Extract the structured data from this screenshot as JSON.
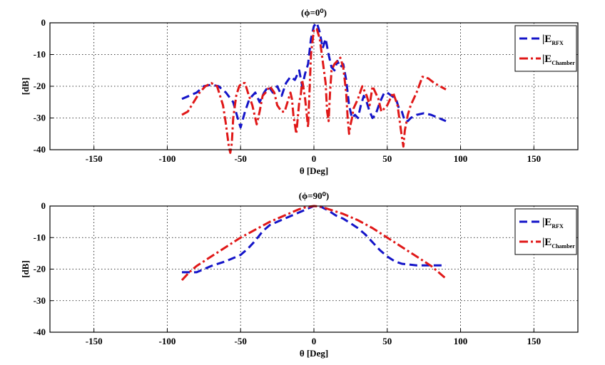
{
  "chart_data": [
    {
      "type": "line",
      "title": "(ϕ=0⁰)",
      "xlabel": "θ [Deg]",
      "ylabel": "[dB]",
      "xlim": [
        -180,
        180
      ],
      "ylim": [
        -40,
        0
      ],
      "xticks": [
        -150,
        -100,
        -50,
        0,
        50,
        100,
        150
      ],
      "yticks": [
        0,
        -10,
        -20,
        -30,
        -40
      ],
      "grid": true,
      "legend_position": "top-right",
      "legend": [
        {
          "text": "|E",
          "sub": "RFX"
        },
        {
          "text": "|E",
          "sub": "Chamber"
        }
      ],
      "series": [
        {
          "name": "|E RFX",
          "color": "#1414c8",
          "style": "dashed",
          "x": [
            -90,
            -80,
            -75,
            -70,
            -65,
            -60,
            -55,
            -52,
            -50,
            -47,
            -44,
            -40,
            -37,
            -34,
            -31,
            -28,
            -25,
            -22,
            -19,
            -16,
            -13,
            -10,
            -8,
            -6,
            -4,
            -2,
            0,
            2,
            4,
            6,
            8,
            10,
            12,
            14,
            16,
            18,
            20,
            22,
            24,
            26,
            28,
            30,
            32,
            34,
            36,
            38,
            40,
            42,
            45,
            48,
            50,
            53,
            56,
            58,
            60,
            62,
            64,
            66,
            70,
            75,
            80,
            85,
            90
          ],
          "y": [
            -24,
            -22,
            -20,
            -19.5,
            -20,
            -22,
            -25,
            -30,
            -33,
            -28,
            -24,
            -22,
            -25,
            -22,
            -20,
            -22,
            -20,
            -23,
            -19,
            -17,
            -18,
            -15,
            -20,
            -16,
            -13,
            -5,
            -1,
            0,
            -3,
            -8,
            -5,
            -10,
            -14,
            -15,
            -12,
            -14,
            -13,
            -18,
            -26,
            -30,
            -29,
            -30,
            -26,
            -23,
            -25,
            -28,
            -30,
            -29,
            -25,
            -22,
            -22,
            -23,
            -24,
            -27,
            -28,
            -31,
            -31,
            -30,
            -29,
            -28.5,
            -29,
            -30,
            -31
          ]
        },
        {
          "name": "|E Chamber",
          "color": "#e01818",
          "style": "dashdot",
          "x": [
            -90,
            -86,
            -82,
            -78,
            -74,
            -70,
            -66,
            -62,
            -60,
            -58,
            -57,
            -56,
            -55,
            -53,
            -51,
            -49,
            -47,
            -45,
            -42,
            -39,
            -37,
            -35,
            -33,
            -30,
            -27,
            -25,
            -22,
            -20,
            -18,
            -16,
            -15,
            -14,
            -12,
            -10,
            -9,
            -8,
            -6,
            -4,
            -2,
            0,
            2,
            4,
            6,
            8,
            9,
            10,
            11,
            12,
            14,
            16,
            18,
            20,
            22,
            23,
            24,
            25,
            26,
            27,
            30,
            33,
            36,
            38,
            40,
            42,
            44,
            46,
            50,
            54,
            57,
            60,
            61,
            62,
            64,
            66,
            70,
            74,
            78,
            82,
            86,
            90
          ],
          "y": [
            -29,
            -28,
            -25,
            -22,
            -20,
            -19,
            -20,
            -26,
            -32,
            -39,
            -41,
            -38,
            -30,
            -23,
            -20,
            -19,
            -19,
            -22,
            -26,
            -32,
            -28,
            -23,
            -22,
            -20,
            -22,
            -26,
            -28,
            -28,
            -25,
            -22,
            -24,
            -29,
            -35,
            -25,
            -23,
            -18,
            -24,
            -33,
            -10,
            -2,
            -2,
            -5,
            -12,
            -19,
            -28,
            -31,
            -22,
            -15,
            -13,
            -12,
            -11,
            -14,
            -22,
            -30,
            -35,
            -32,
            -30,
            -27,
            -24,
            -20,
            -23,
            -26,
            -20,
            -22,
            -24,
            -28,
            -26,
            -22,
            -26,
            -36,
            -39,
            -34,
            -29,
            -26,
            -22,
            -17,
            -17.5,
            -19,
            -20,
            -21
          ]
        }
      ]
    },
    {
      "type": "line",
      "title": "(ϕ=90⁰)",
      "xlabel": "θ [Deg]",
      "ylabel": "[dB]",
      "xlim": [
        -180,
        180
      ],
      "ylim": [
        -40,
        0
      ],
      "xticks": [
        -150,
        -100,
        -50,
        0,
        50,
        100,
        150
      ],
      "yticks": [
        0,
        -10,
        -20,
        -30,
        -40
      ],
      "grid": true,
      "legend_position": "top-right",
      "legend": [
        {
          "text": "|E",
          "sub": "RFX"
        },
        {
          "text": "|E",
          "sub": "Chamber"
        }
      ],
      "series": [
        {
          "name": "|E RFX",
          "color": "#1414c8",
          "style": "dashed",
          "x": [
            -90,
            -80,
            -70,
            -60,
            -50,
            -45,
            -40,
            -35,
            -30,
            -25,
            -20,
            -15,
            -10,
            -5,
            0,
            5,
            10,
            15,
            20,
            25,
            30,
            35,
            40,
            45,
            50,
            55,
            60,
            70,
            80,
            90
          ],
          "y": [
            -21,
            -21,
            -19,
            -17.5,
            -15.5,
            -13.5,
            -11,
            -8,
            -6,
            -5,
            -4,
            -3,
            -2,
            -1,
            0,
            -0.3,
            -1.5,
            -3,
            -4,
            -5.5,
            -7,
            -9,
            -11.5,
            -14,
            -16,
            -17.5,
            -18.3,
            -18.8,
            -18.8,
            -18.8
          ]
        },
        {
          "name": "|E Chamber",
          "color": "#e01818",
          "style": "dashdot",
          "x": [
            -90,
            -85,
            -80,
            -70,
            -60,
            -50,
            -40,
            -30,
            -20,
            -10,
            -5,
            0,
            5,
            10,
            20,
            30,
            40,
            50,
            60,
            70,
            80,
            85,
            90
          ],
          "y": [
            -23.5,
            -21,
            -19,
            -16,
            -13,
            -10,
            -7.5,
            -5,
            -3,
            -1,
            -0.3,
            0,
            -0.2,
            -1,
            -2.5,
            -4.5,
            -7,
            -10,
            -13,
            -16,
            -19,
            -21,
            -23
          ]
        }
      ]
    }
  ]
}
